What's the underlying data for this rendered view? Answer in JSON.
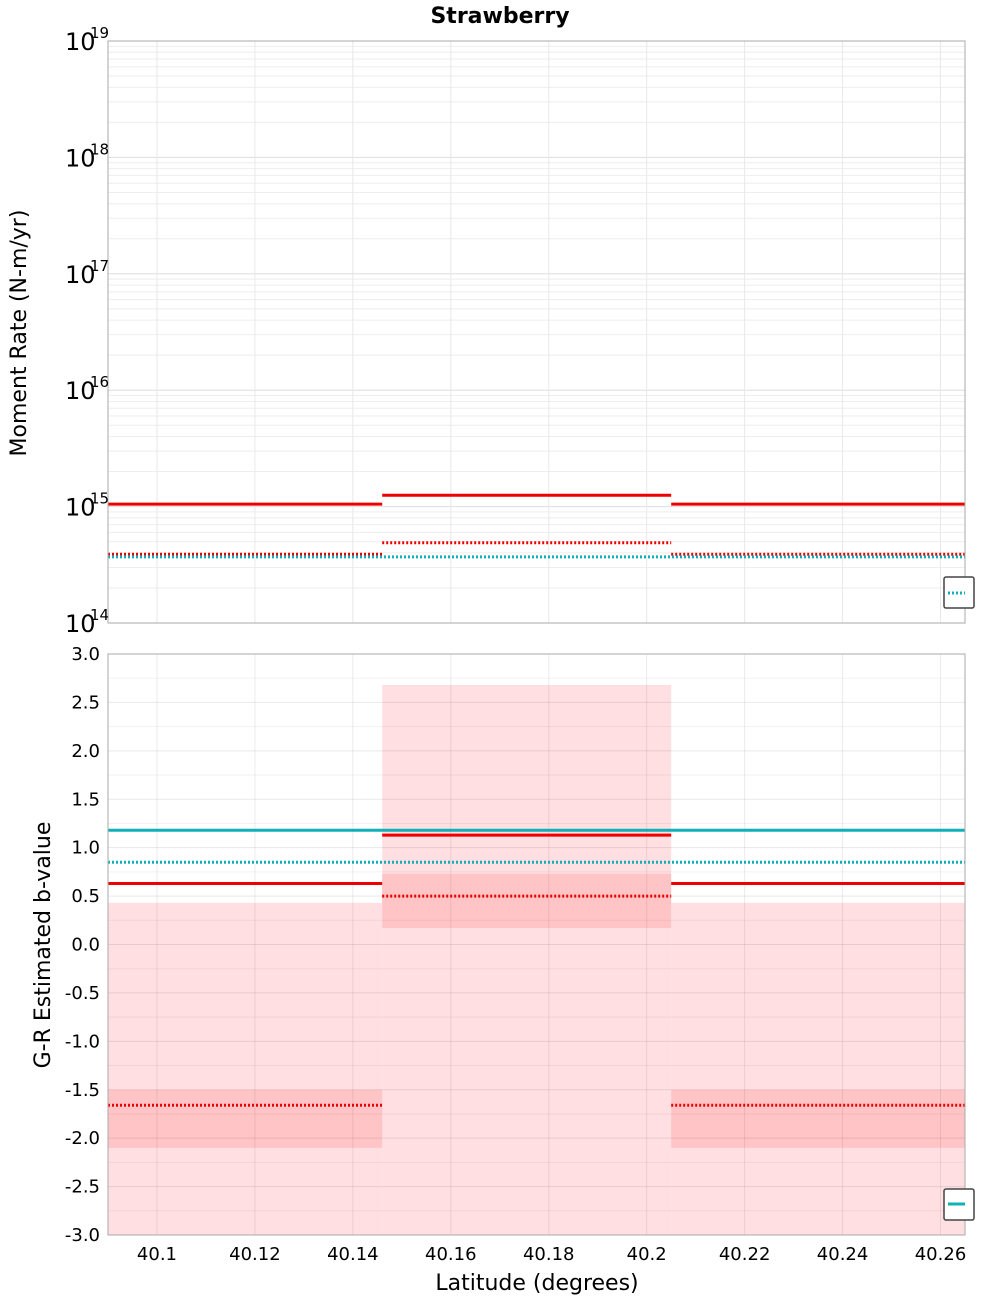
{
  "title": "Strawberry",
  "colors": {
    "red": "#ee0000",
    "cyan": "#11b0b8",
    "band_light": "#ffdfe1",
    "band_dark": "#ffc4c6",
    "grid": "#e6e6e6",
    "frame": "#aaaaaa"
  },
  "chart_data": [
    {
      "type": "line",
      "panel": "top",
      "title": "Strawberry",
      "ylabel": "Moment Rate (N-m/yr)",
      "yscale": "log",
      "ylim": [
        100000000000000.0,
        1e+19
      ],
      "xlim": [
        40.09,
        40.265
      ],
      "y_tick_labels": [
        {
          "base": "10",
          "exp": "14",
          "value": 100000000000000.0
        },
        {
          "base": "10",
          "exp": "15",
          "value": 1000000000000000.0
        },
        {
          "base": "10",
          "exp": "16",
          "value": 1e+16
        },
        {
          "base": "10",
          "exp": "17",
          "value": 1e+17
        },
        {
          "base": "10",
          "exp": "18",
          "value": 1e+18
        },
        {
          "base": "10",
          "exp": "19",
          "value": 1e+19
        }
      ],
      "grid": true,
      "legend": "bottom-right (clipped)",
      "series": [
        {
          "color": "red",
          "style": "solid",
          "width": 3,
          "points": [
            [
              40.09,
              1050000000000000.0
            ],
            [
              40.146,
              1050000000000000.0
            ],
            null,
            [
              40.146,
              1250000000000000.0
            ],
            [
              40.205,
              1250000000000000.0
            ],
            null,
            [
              40.205,
              1050000000000000.0
            ],
            [
              40.265,
              1050000000000000.0
            ]
          ]
        },
        {
          "color": "red",
          "style": "dotted",
          "width": 3,
          "points": [
            [
              40.09,
              390000000000000.0
            ],
            [
              40.146,
              390000000000000.0
            ],
            null,
            [
              40.146,
              490000000000000.0
            ],
            [
              40.205,
              490000000000000.0
            ],
            null,
            [
              40.205,
              390000000000000.0
            ],
            [
              40.265,
              390000000000000.0
            ]
          ]
        },
        {
          "color": "cyan",
          "style": "dotted",
          "width": 3,
          "points": [
            [
              40.09,
              370000000000000.0
            ],
            [
              40.265,
              370000000000000.0
            ]
          ]
        }
      ]
    },
    {
      "type": "line",
      "panel": "bottom",
      "xlabel": "Latitude (degrees)",
      "ylabel": "G-R Estimated b-value",
      "ylim": [
        -3.0,
        3.0
      ],
      "xlim": [
        40.09,
        40.265
      ],
      "y_ticks": [
        "-3.0",
        "-2.5",
        "-2.0",
        "-1.5",
        "-1.0",
        "-0.5",
        "0.0",
        "0.5",
        "1.0",
        "1.5",
        "2.0",
        "2.5",
        "3.0"
      ],
      "x_ticks": [
        "40.1",
        "40.12",
        "40.14",
        "40.16",
        "40.18",
        "40.2",
        "40.22",
        "40.24",
        "40.26"
      ],
      "x_tick_values": [
        40.1,
        40.12,
        40.14,
        40.16,
        40.18,
        40.2,
        40.22,
        40.24,
        40.26
      ],
      "grid": true,
      "legend": "bottom-right (clipped)",
      "bands": [
        {
          "x0": 40.09,
          "x1": 40.146,
          "y0": -3.0,
          "y1": 0.43,
          "color": "band_light"
        },
        {
          "x0": 40.146,
          "x1": 40.205,
          "y0": -3.0,
          "y1": 2.68,
          "color": "band_light"
        },
        {
          "x0": 40.205,
          "x1": 40.265,
          "y0": -3.0,
          "y1": 0.43,
          "color": "band_light"
        },
        {
          "x0": 40.09,
          "x1": 40.146,
          "y0": -2.1,
          "y1": -1.5,
          "color": "band_dark"
        },
        {
          "x0": 40.146,
          "x1": 40.205,
          "y0": 0.17,
          "y1": 0.73,
          "color": "band_dark"
        },
        {
          "x0": 40.205,
          "x1": 40.265,
          "y0": -2.1,
          "y1": -1.5,
          "color": "band_dark"
        }
      ],
      "series": [
        {
          "color": "cyan",
          "style": "solid",
          "width": 3,
          "points": [
            [
              40.09,
              1.18
            ],
            [
              40.265,
              1.18
            ]
          ]
        },
        {
          "color": "cyan",
          "style": "dotted",
          "width": 3,
          "points": [
            [
              40.09,
              0.85
            ],
            [
              40.265,
              0.85
            ]
          ]
        },
        {
          "color": "red",
          "style": "solid",
          "width": 3,
          "points": [
            [
              40.09,
              0.63
            ],
            [
              40.146,
              0.63
            ],
            null,
            [
              40.146,
              1.13
            ],
            [
              40.205,
              1.13
            ],
            null,
            [
              40.205,
              0.63
            ],
            [
              40.265,
              0.63
            ]
          ]
        },
        {
          "color": "red",
          "style": "dotted",
          "width": 3,
          "points": [
            [
              40.146,
              0.5
            ],
            [
              40.205,
              0.5
            ]
          ]
        },
        {
          "color": "red",
          "style": "dotted",
          "width": 3,
          "points": [
            [
              40.09,
              -1.66
            ],
            [
              40.146,
              -1.66
            ],
            null,
            [
              40.205,
              -1.66
            ],
            [
              40.265,
              -1.66
            ]
          ]
        }
      ]
    }
  ]
}
